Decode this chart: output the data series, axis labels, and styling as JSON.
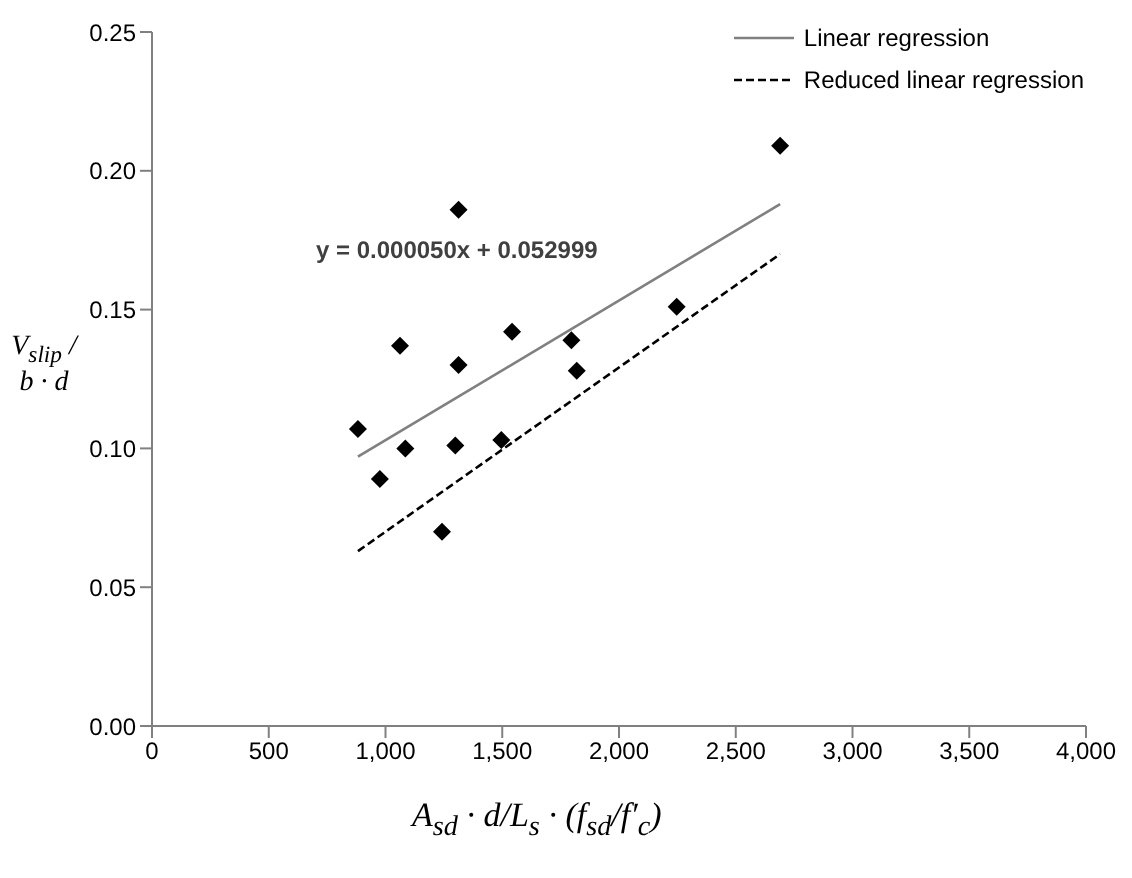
{
  "chart_data": {
    "type": "scatter",
    "xlabel": "A$_{sd}$ · d/L$_{s}$ · (f$_{sd}$/f′$_{c}$)",
    "ylabel": "V$_{slip}$ / b · d",
    "xlim": [
      0,
      4000
    ],
    "xticks": [
      0,
      {
        "value": 500,
        "label": "500"
      },
      {
        "value": 1000,
        "label": "1,000"
      },
      {
        "value": 1500,
        "label": "1,500"
      },
      {
        "value": 2000,
        "label": "2,000"
      },
      {
        "value": 2500,
        "label": "2,500"
      },
      {
        "value": 3000,
        "label": "3,000"
      },
      {
        "value": 3500,
        "label": "3,500"
      },
      {
        "value": 4000,
        "label": "4,000"
      }
    ],
    "ylim": [
      0,
      0.25
    ],
    "yticks": [
      {
        "value": 0,
        "label": "0.00"
      },
      {
        "value": 0.05,
        "label": "0.05"
      },
      {
        "value": 0.1,
        "label": "0.10"
      },
      {
        "value": 0.15,
        "label": "0.15"
      },
      {
        "value": 0.2,
        "label": "0.20"
      },
      {
        "value": 0.25,
        "label": "0.25"
      }
    ],
    "grid": false,
    "legend": "top right",
    "annotations": [
      "y = 0.000050x + 0.052999"
    ],
    "series": [
      {
        "type": "scatter",
        "color": "#000000",
        "marker": "diamond",
        "x": [
          882,
          976,
          1062,
          1085,
          1242,
          1299,
          1313,
          1313,
          1496,
          1542,
          1796,
          1819,
          2247,
          2690
        ],
        "values": [
          0.107,
          0.089,
          0.137,
          0.1,
          0.07,
          0.101,
          0.13,
          0.186,
          0.103,
          0.142,
          0.139,
          0.128,
          0.151,
          0.209
        ]
      },
      {
        "type": "line",
        "name": "Linear regression",
        "color": "#808080",
        "line_style": "solid",
        "marker": "none",
        "x": [
          882,
          2690
        ],
        "values": [
          0.097,
          0.188
        ]
      },
      {
        "type": "line",
        "name": "Reduced linear regression",
        "color": "#000000",
        "line_style": "dashed",
        "marker": "none",
        "x": [
          882,
          2690
        ],
        "values": [
          0.063,
          0.17
        ]
      }
    ]
  }
}
